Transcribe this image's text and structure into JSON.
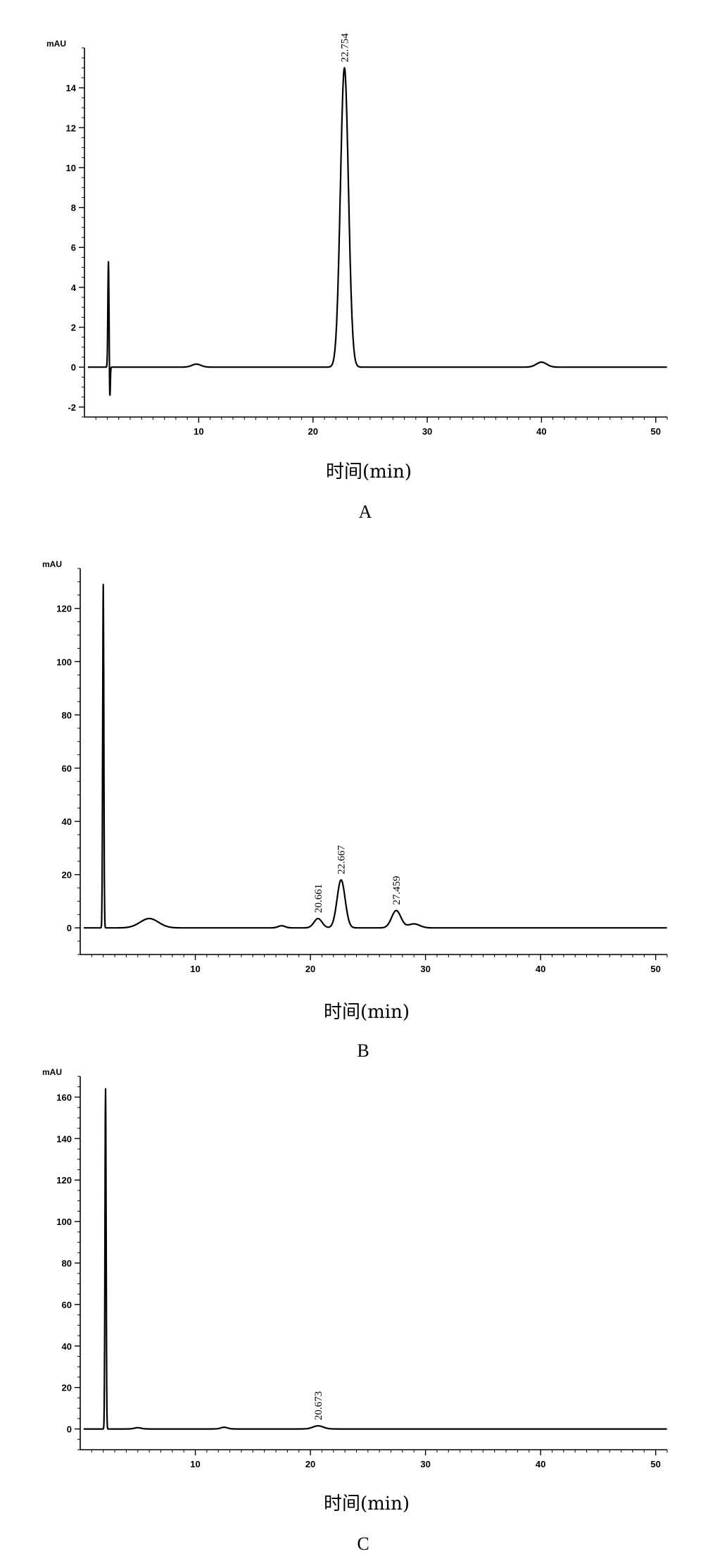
{
  "chart_data": [
    {
      "type": "line",
      "panel_label": "A",
      "xlabel": "时间(min)",
      "ylabel": "mAU",
      "xlim": [
        0,
        51
      ],
      "ylim": [
        -2.5,
        16
      ],
      "x_ticks": [
        10,
        20,
        30,
        40,
        50
      ],
      "y_ticks": [
        -2,
        0,
        2,
        4,
        6,
        8,
        10,
        12,
        14
      ],
      "peaks": [
        {
          "rt": 22.754,
          "label": "22.754",
          "height": 15.0,
          "width": 0.35
        }
      ],
      "minor_features": [
        {
          "rt": 9.8,
          "height": 0.15,
          "width": 0.4
        },
        {
          "rt": 40.0,
          "height": 0.25,
          "width": 0.45
        }
      ],
      "injection_spike": {
        "rt": 2.1,
        "max": 5.3,
        "min": -1.7
      }
    },
    {
      "type": "line",
      "panel_label": "B",
      "xlabel": "时间(min)",
      "ylabel": "mAU",
      "xlim": [
        0,
        51
      ],
      "ylim": [
        -10,
        135
      ],
      "x_ticks": [
        10,
        20,
        30,
        40,
        50
      ],
      "y_ticks": [
        0,
        20,
        40,
        60,
        80,
        100,
        120
      ],
      "peaks": [
        {
          "rt": 20.661,
          "label": "20.661",
          "height": 3.5,
          "width": 0.35
        },
        {
          "rt": 22.667,
          "label": "22.667",
          "height": 18.0,
          "width": 0.35
        },
        {
          "rt": 27.459,
          "label": "27.459",
          "height": 6.5,
          "width": 0.4
        }
      ],
      "minor_features": [
        {
          "rt": 6.0,
          "height": 3.5,
          "width": 0.8
        },
        {
          "rt": 29.0,
          "height": 1.5,
          "width": 0.5
        },
        {
          "rt": 17.5,
          "height": 0.8,
          "width": 0.3
        }
      ],
      "injection_spike": {
        "rt": 2.0,
        "max": 129.0,
        "min": 0
      }
    },
    {
      "type": "line",
      "panel_label": "C",
      "xlabel": "时间(min)",
      "ylabel": "mAU",
      "xlim": [
        0,
        51
      ],
      "ylim": [
        -10,
        170
      ],
      "x_ticks": [
        10,
        20,
        30,
        40,
        50
      ],
      "y_ticks": [
        0,
        20,
        40,
        60,
        80,
        100,
        120,
        140,
        160
      ],
      "peaks": [
        {
          "rt": 20.673,
          "label": "20.673",
          "height": 1.5,
          "width": 0.45
        }
      ],
      "minor_features": [
        {
          "rt": 12.5,
          "height": 0.8,
          "width": 0.3
        },
        {
          "rt": 5.0,
          "height": 0.6,
          "width": 0.3
        }
      ],
      "injection_spike": {
        "rt": 2.2,
        "max": 164.0,
        "min": 0
      }
    }
  ]
}
